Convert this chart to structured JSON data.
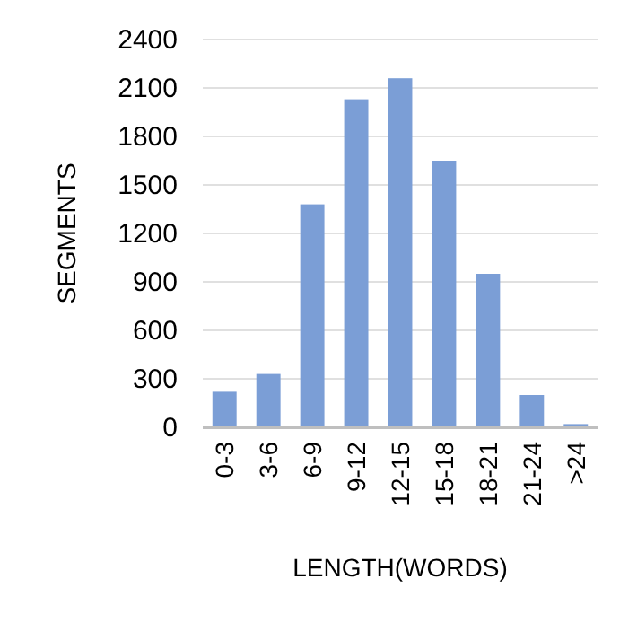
{
  "chart_data": {
    "type": "bar",
    "xlabel": "LENGTH(WORDS)",
    "ylabel": "SEGMENTS",
    "categories": [
      "0-3",
      "3-6",
      "6-9",
      "9-12",
      "12-15",
      "15-18",
      "18-21",
      "21-24",
      ">24"
    ],
    "values": [
      220,
      330,
      1380,
      2030,
      2160,
      1650,
      950,
      200,
      20
    ],
    "color": "#7b9ed6",
    "ylim": [
      0,
      2400
    ],
    "yticks": [
      0,
      300,
      600,
      900,
      1200,
      1500,
      1800,
      2100,
      2400
    ],
    "grid": "y"
  }
}
